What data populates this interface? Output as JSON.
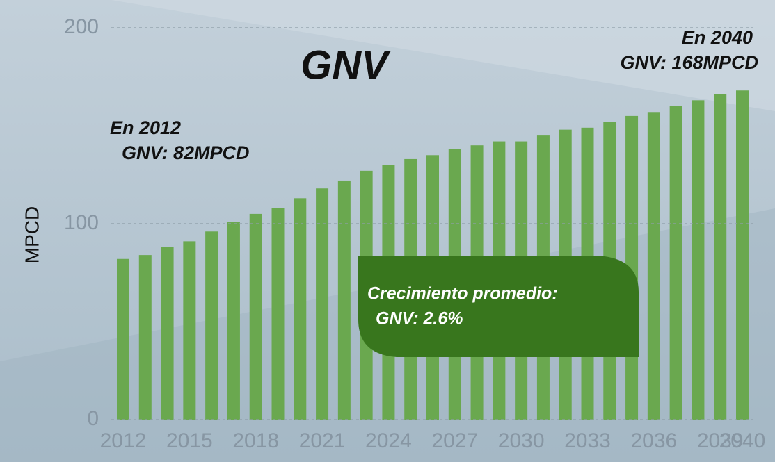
{
  "chart_data": {
    "type": "bar",
    "title": "GNV",
    "y_label": "MPCD",
    "color": "#6aa84f",
    "categories": [
      "2012",
      null,
      null,
      "2015",
      null,
      null,
      "2018",
      null,
      null,
      "2021",
      null,
      null,
      "2024",
      null,
      null,
      "2027",
      null,
      null,
      "2030",
      null,
      null,
      "2033",
      null,
      null,
      "2036",
      null,
      null,
      "2039",
      "2040"
    ],
    "values": [
      82,
      84,
      88,
      91,
      96,
      101,
      105,
      108,
      113,
      118,
      122,
      127,
      130,
      133,
      135,
      138,
      140,
      142,
      142,
      145,
      148,
      149,
      152,
      155,
      157,
      160,
      163,
      166,
      168
    ],
    "ylim": [
      0,
      200
    ],
    "yticks": [
      0,
      100,
      200
    ],
    "grid": true,
    "annotations": [
      {
        "lines": [
          "En 2012",
          "GNV: 82MPCD"
        ]
      },
      {
        "lines": [
          "En 2040",
          "GNV: 168MPCD"
        ]
      },
      {
        "lines": [
          "Crecimiento promedio:",
          "GNV: 2.6%"
        ]
      }
    ]
  }
}
